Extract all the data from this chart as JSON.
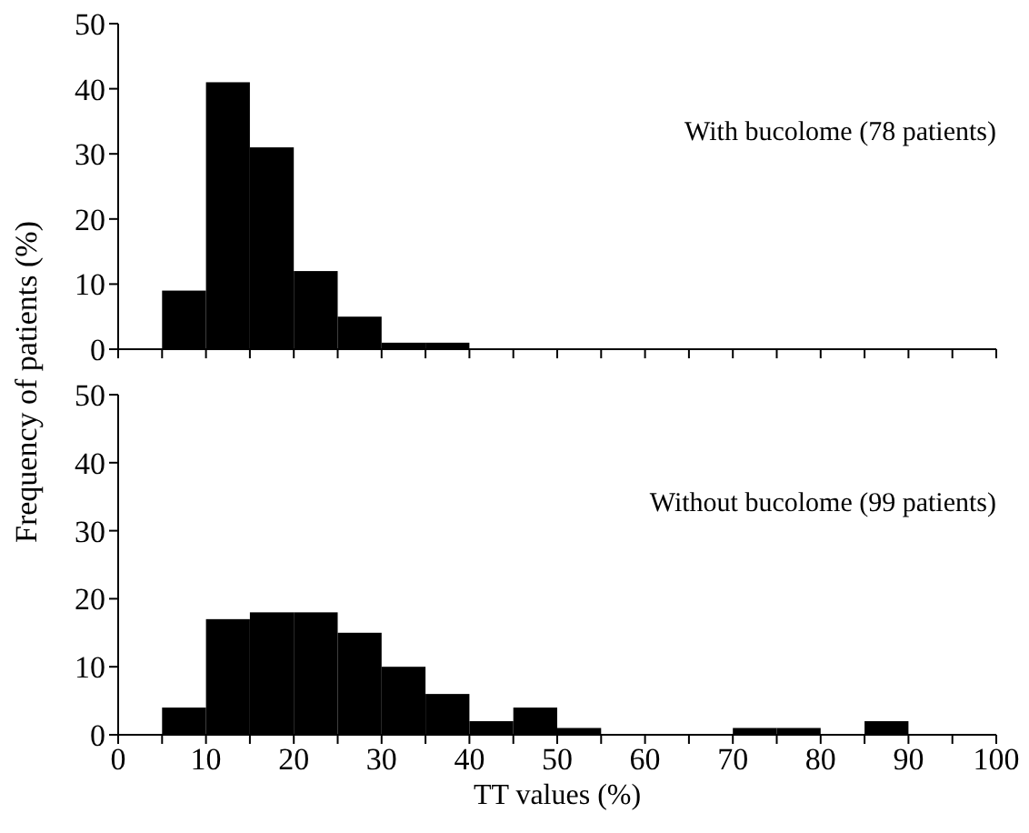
{
  "chart_data": [
    {
      "type": "histogram",
      "ylabel": "Frequency of patients (%)",
      "annotations": [
        "With bucolome (78 patients)"
      ],
      "bins": [
        5,
        10,
        15,
        20,
        25,
        30,
        35,
        40,
        45,
        50,
        55,
        60,
        65,
        70,
        75,
        80,
        85,
        90
      ],
      "values": [
        9,
        41,
        31,
        12,
        5,
        1,
        1,
        0,
        0,
        0,
        0,
        0,
        0,
        0,
        0,
        0,
        0
      ],
      "color": "#000000",
      "xlim": [
        0,
        100
      ],
      "xticks": [
        {
          "value": 0,
          "label": null
        },
        {
          "value": 5,
          "label": null
        },
        {
          "value": 10,
          "label": null
        },
        {
          "value": 15,
          "label": null
        },
        {
          "value": 20,
          "label": null
        },
        {
          "value": 25,
          "label": null
        },
        {
          "value": 30,
          "label": null
        },
        {
          "value": 35,
          "label": null
        },
        {
          "value": 40,
          "label": null
        },
        {
          "value": 45,
          "label": null
        },
        {
          "value": 50,
          "label": null
        },
        {
          "value": 55,
          "label": null
        },
        {
          "value": 60,
          "label": null
        },
        {
          "value": 65,
          "label": null
        },
        {
          "value": 70,
          "label": null
        },
        {
          "value": 75,
          "label": null
        },
        {
          "value": 80,
          "label": null
        },
        {
          "value": 85,
          "label": null
        },
        {
          "value": 90,
          "label": null
        },
        {
          "value": 95,
          "label": null
        },
        {
          "value": 100,
          "label": null
        }
      ],
      "ylim": [
        0,
        50
      ],
      "yticks": [
        0,
        10,
        20,
        30,
        40,
        50
      ],
      "tick_labels": "y",
      "grid": false,
      "legend": false
    },
    {
      "type": "histogram",
      "xlabel": "TT values (%)",
      "annotations": [
        "Without bucolome (99 patients)"
      ],
      "bins": [
        5,
        10,
        15,
        20,
        25,
        30,
        35,
        40,
        45,
        50,
        55,
        60,
        65,
        70,
        75,
        80,
        85,
        90
      ],
      "values": [
        4,
        17,
        18,
        18,
        15,
        10,
        6,
        2,
        4,
        1,
        0,
        0,
        0,
        1,
        1,
        0,
        2
      ],
      "color": "#000000",
      "xlim": [
        0,
        100
      ],
      "xticks": [
        0,
        {
          "value": 5,
          "label": null
        },
        10,
        {
          "value": 15,
          "label": null
        },
        20,
        {
          "value": 25,
          "label": null
        },
        30,
        {
          "value": 35,
          "label": null
        },
        40,
        {
          "value": 45,
          "label": null
        },
        50,
        {
          "value": 55,
          "label": null
        },
        60,
        {
          "value": 65,
          "label": null
        },
        70,
        {
          "value": 75,
          "label": null
        },
        80,
        {
          "value": 85,
          "label": null
        },
        90,
        {
          "value": 95,
          "label": null
        },
        100
      ],
      "ylim": [
        0,
        50
      ],
      "yticks": [
        0,
        10,
        20,
        30,
        40,
        50
      ],
      "grid": false,
      "legend": false
    }
  ]
}
